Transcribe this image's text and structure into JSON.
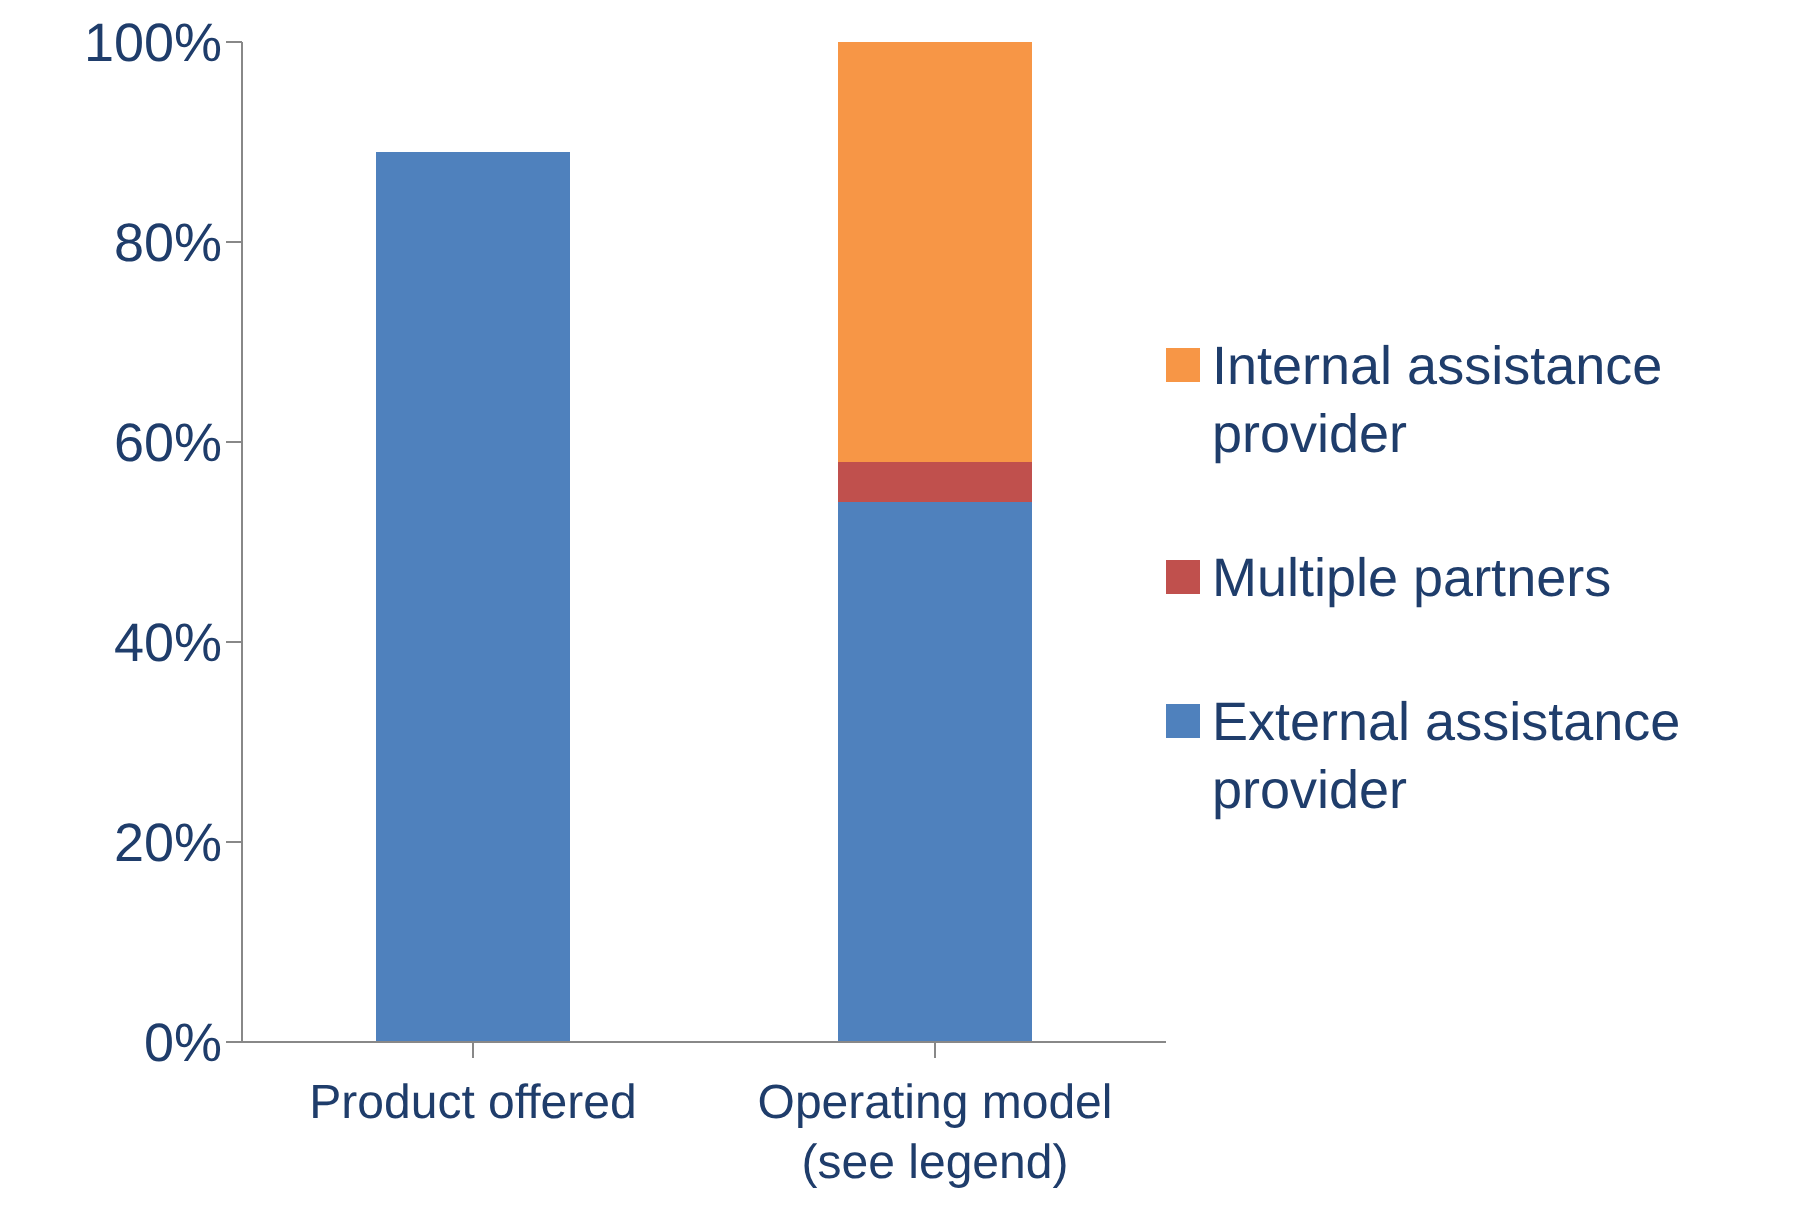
{
  "chart_data": {
    "type": "bar",
    "stacked": true,
    "categories": [
      "Product offered",
      "Operating model (see legend)"
    ],
    "series": [
      {
        "name": "External assistance provider",
        "color": "#4f81bd",
        "values": [
          89,
          54
        ]
      },
      {
        "name": "Multiple partners",
        "color": "#c0504d",
        "values": [
          null,
          4
        ]
      },
      {
        "name": "Internal assistance provider",
        "color": "#f79646",
        "values": [
          null,
          42
        ]
      }
    ],
    "ylim": [
      0,
      100
    ],
    "yticks": [
      {
        "value": 0,
        "label": "0%"
      },
      {
        "value": 20,
        "label": "20%"
      },
      {
        "value": 40,
        "label": "40%"
      },
      {
        "value": 60,
        "label": "60%"
      },
      {
        "value": 80,
        "label": "80%"
      },
      {
        "value": 100,
        "label": "100%"
      }
    ],
    "grid": false,
    "legend": "right"
  }
}
